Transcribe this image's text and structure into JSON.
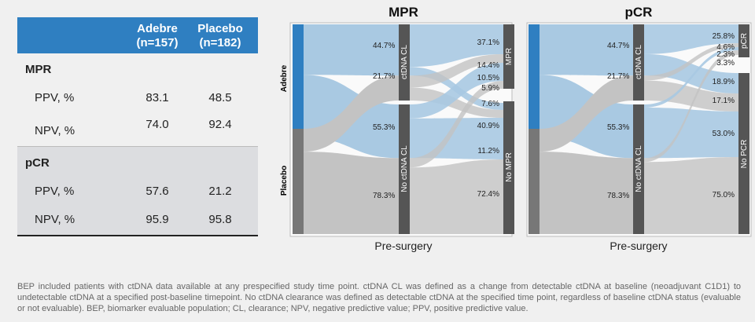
{
  "table": {
    "header": {
      "adebre_line1": "Adebre",
      "adebre_line2": "(n=157)",
      "placebo_line1": "Placebo",
      "placebo_line2": "(n=182)"
    },
    "sections": [
      {
        "title": "MPR",
        "rows": [
          {
            "label": "PPV, %",
            "adebre": "83.1",
            "placebo": "48.5"
          },
          {
            "label": "NPV, %",
            "adebre": "74.0",
            "placebo": "92.4"
          }
        ]
      },
      {
        "title": "pCR",
        "rows": [
          {
            "label": "PPV, %",
            "adebre": "57.6",
            "placebo": "21.2"
          },
          {
            "label": "NPV, %",
            "adebre": "95.9",
            "placebo": "95.8"
          }
        ]
      }
    ]
  },
  "chart_data": [
    {
      "type": "sankey",
      "title": "MPR",
      "xlabel": "Pre-surgery",
      "left_nodes": [
        "Adebre",
        "Placebo"
      ],
      "middle_nodes": [
        "ctDNA CL",
        "No ctDNA CL"
      ],
      "right_nodes": [
        "MPR",
        "No MPR"
      ],
      "first_stage": [
        {
          "from": "Adebre",
          "to": "ctDNA CL",
          "value": 44.7
        },
        {
          "from": "Adebre",
          "to": "No ctDNA CL",
          "value": 55.3
        },
        {
          "from": "Placebo",
          "to": "ctDNA CL",
          "value": 21.7
        },
        {
          "from": "Placebo",
          "to": "No ctDNA CL",
          "value": 78.3
        }
      ],
      "second_stage_labels": [
        "37.1%",
        "14.4%",
        "10.5%",
        "5.9%",
        "7.6%",
        "40.9%",
        "11.2%",
        "72.4%"
      ],
      "colors": {
        "adebre": "#2f7fc1",
        "placebo": "#777777",
        "adebre_flow": "#a9c9e2",
        "placebo_flow": "#c3c3c3",
        "node": "#555555"
      }
    },
    {
      "type": "sankey",
      "title": "pCR",
      "xlabel": "Pre-surgery",
      "left_nodes": [
        "Adebre",
        "Placebo"
      ],
      "middle_nodes": [
        "ctDNA CL",
        "No ctDNA CL"
      ],
      "right_nodes": [
        "pCR",
        "No PCR"
      ],
      "first_stage": [
        {
          "from": "Adebre",
          "to": "ctDNA CL",
          "value": 44.7
        },
        {
          "from": "Adebre",
          "to": "No ctDNA CL",
          "value": 55.3
        },
        {
          "from": "Placebo",
          "to": "ctDNA CL",
          "value": 21.7
        },
        {
          "from": "Placebo",
          "to": "No ctDNA CL",
          "value": 78.3
        }
      ],
      "second_stage_labels": [
        "25.8%",
        "4.6%",
        "2.3%",
        "3.3%",
        "18.9%",
        "17.1%",
        "53.0%",
        "75.0%"
      ],
      "colors": {
        "adebre": "#2f7fc1",
        "placebo": "#777777",
        "adebre_flow": "#a9c9e2",
        "placebo_flow": "#c3c3c3",
        "node": "#555555"
      }
    }
  ],
  "footnote": "BEP included patients with ctDNA data available at any prespecified study time point. ctDNA CL was defined as a change from detectable ctDNA at baseline (neoadjuvant C1D1) to undetectable ctDNA at a specified post-baseline timepoint. No ctDNA clearance was defined as detectable ctDNA at the specified time point, regardless of baseline ctDNA status (evaluable or not evaluable). BEP, biomarker evaluable population; CL, clearance; NPV, negative predictive value; PPV, positive predictive value."
}
